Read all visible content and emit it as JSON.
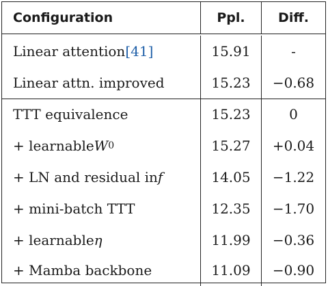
{
  "table": {
    "headers": [
      "Configuration",
      "Ppl.",
      "Diff."
    ],
    "group1": [
      {
        "config_prefix": "Linear attention ",
        "cite_open": "[",
        "cite_num": "41",
        "cite_close": "]",
        "ppl": "15.91",
        "diff": "-"
      },
      {
        "config": "Linear attn. improved",
        "ppl": "15.23",
        "diff": "−0.68"
      }
    ],
    "group2": [
      {
        "config": "TTT equivalence",
        "ppl": "15.23",
        "diff": "0"
      },
      {
        "config_prefix": "+ learnable ",
        "var": "W",
        "sub": "0",
        "ppl": "15.27",
        "diff": "+0.04"
      },
      {
        "config_prefix": "+ LN and residual in ",
        "var": "f",
        "ppl": "14.05",
        "diff": "−1.22"
      },
      {
        "config": "+ mini-batch TTT",
        "ppl": "12.35",
        "diff": "−1.70"
      },
      {
        "config_prefix": "+ learnable ",
        "var": "η",
        "ppl": "11.99",
        "diff": "−0.36"
      },
      {
        "config": "+ Mamba backbone",
        "ppl": "11.09",
        "diff": "−0.90"
      }
    ]
  }
}
